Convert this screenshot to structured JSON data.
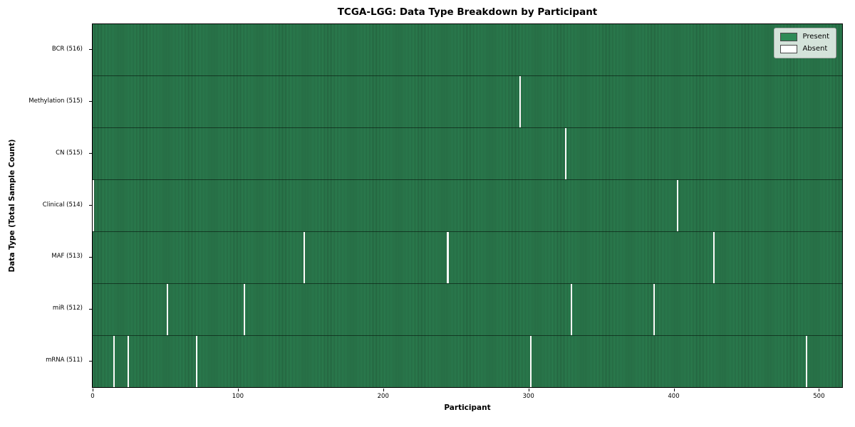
{
  "chart_data": {
    "type": "heatmap",
    "title": "TCGA-LGG: Data Type Breakdown by Participant",
    "xlabel": "Participant",
    "ylabel": "Data Type (Total Sample Count)",
    "x_range": [
      0,
      516
    ],
    "total_participants": 516,
    "xticks": [
      0,
      100,
      200,
      300,
      400,
      500
    ],
    "grid": false,
    "legend_position": "upper right",
    "legend_items": [
      {
        "label": "Present",
        "color": "#2e8b57"
      },
      {
        "label": "Absent",
        "color": "#ffffff"
      }
    ],
    "colors": {
      "present_fill": "#2e8b57",
      "bar_edge": "#1e4c31",
      "absent_fill": "#ffffff",
      "row_divider": "#0a1a0f",
      "legend_face": "rgba(255,255,255,0.8)"
    },
    "rows": [
      {
        "label": "BCR (516)",
        "data_type": "BCR",
        "present_count": 516,
        "absent_participants": []
      },
      {
        "label": "Methylation (515)",
        "data_type": "Methylation",
        "present_count": 515,
        "absent_participants": [
          294
        ]
      },
      {
        "label": "CN (515)",
        "data_type": "CN",
        "present_count": 515,
        "absent_participants": [
          325
        ]
      },
      {
        "label": "Clinical (514)",
        "data_type": "Clinical",
        "present_count": 514,
        "absent_participants": [
          0,
          402
        ]
      },
      {
        "label": "MAF (513)",
        "data_type": "MAF",
        "present_count": 513,
        "absent_participants": [
          145,
          244,
          427
        ]
      },
      {
        "label": "miR (512)",
        "data_type": "miR",
        "present_count": 512,
        "absent_participants": [
          51,
          104,
          329,
          386
        ]
      },
      {
        "label": "mRNA (511)",
        "data_type": "mRNA",
        "present_count": 511,
        "absent_participants": [
          14,
          24,
          71,
          301,
          491
        ]
      }
    ]
  }
}
